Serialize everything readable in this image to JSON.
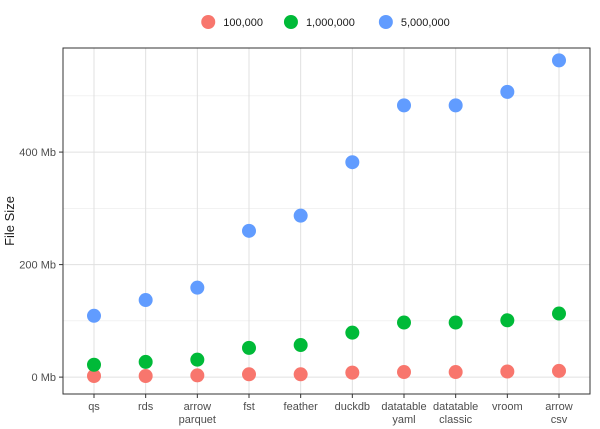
{
  "chart_data": {
    "type": "scatter",
    "ylabel": "File Size",
    "xlabel": "",
    "categories": [
      [
        "qs"
      ],
      [
        "rds"
      ],
      [
        "arrow",
        "parquet"
      ],
      [
        "fst"
      ],
      [
        "feather"
      ],
      [
        "duckdb"
      ],
      [
        "datatable",
        "yaml"
      ],
      [
        "datatable",
        "classic"
      ],
      [
        "vroom"
      ],
      [
        "arrow",
        "csv"
      ]
    ],
    "y_ticks": [
      {
        "value": 0,
        "label": "0 Mb"
      },
      {
        "value": 200,
        "label": "200 Mb"
      },
      {
        "value": 400,
        "label": "400 Mb"
      }
    ],
    "ylim": [
      -30,
      585
    ],
    "grid": true,
    "legend_position": "top",
    "series": [
      {
        "name": "100,000",
        "color": "#F8766D",
        "values": [
          2,
          2,
          3,
          5,
          5,
          8,
          9,
          9,
          10,
          11
        ]
      },
      {
        "name": "1,000,000",
        "color": "#00BA38",
        "values": [
          22,
          27,
          31,
          52,
          57,
          79,
          97,
          97,
          101,
          113
        ]
      },
      {
        "name": "5,000,000",
        "color": "#619CFF",
        "values": [
          109,
          137,
          159,
          260,
          287,
          382,
          483,
          483,
          507,
          563
        ]
      }
    ]
  }
}
